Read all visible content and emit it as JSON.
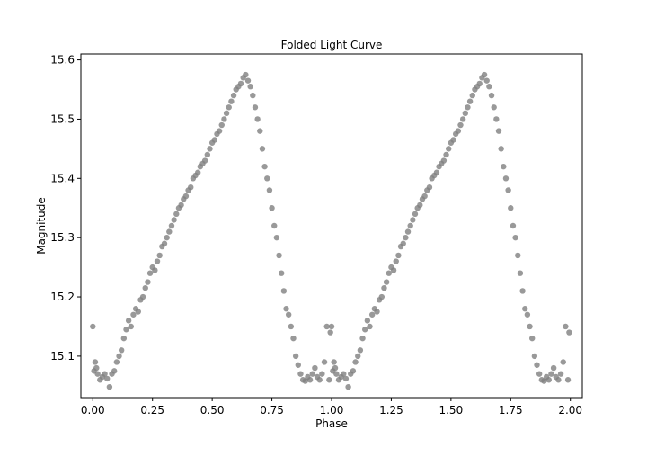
{
  "chart_data": {
    "type": "scatter",
    "title": "Folded Light Curve",
    "xlabel": "Phase",
    "ylabel": "Magnitude",
    "xlim": [
      -0.05,
      2.05
    ],
    "ylim": [
      15.03,
      15.61
    ],
    "x_ticks": [
      "0.00",
      "0.25",
      "0.50",
      "0.75",
      "1.00",
      "1.25",
      "1.50",
      "1.75",
      "2.00"
    ],
    "y_ticks": [
      "15.1",
      "15.2",
      "15.3",
      "15.4",
      "15.5",
      "15.6"
    ],
    "grid": false,
    "legend": "none",
    "marker_color": "#808080",
    "series": [
      {
        "x": [
          0.0,
          0.005,
          0.01,
          0.015,
          0.02,
          0.03,
          0.04,
          0.05,
          0.06,
          0.07,
          0.08,
          0.09,
          0.1,
          0.11,
          0.12,
          0.13,
          0.14,
          0.15,
          0.16,
          0.17,
          0.18,
          0.19,
          0.2,
          0.21,
          0.22,
          0.23,
          0.24,
          0.25,
          0.26,
          0.27,
          0.28,
          0.29,
          0.3,
          0.31,
          0.32,
          0.33,
          0.34,
          0.35,
          0.36,
          0.37,
          0.38,
          0.39,
          0.4,
          0.41,
          0.42,
          0.43,
          0.44,
          0.45,
          0.46,
          0.47,
          0.48,
          0.49,
          0.5,
          0.51,
          0.52,
          0.53,
          0.54,
          0.55,
          0.56,
          0.57,
          0.58,
          0.59,
          0.6,
          0.61,
          0.62,
          0.63,
          0.64,
          0.65,
          0.66,
          0.67,
          0.68,
          0.69,
          0.7,
          0.71,
          0.72,
          0.73,
          0.74,
          0.75,
          0.76,
          0.77,
          0.78,
          0.79,
          0.8,
          0.81,
          0.82,
          0.83,
          0.84,
          0.85,
          0.86,
          0.87,
          0.88,
          0.89,
          0.9,
          0.91,
          0.92,
          0.93,
          0.94,
          0.95,
          0.96,
          0.97,
          0.98,
          0.99,
          0.995
        ],
        "y": [
          15.15,
          15.075,
          15.09,
          15.08,
          15.07,
          15.06,
          15.065,
          15.07,
          15.062,
          15.048,
          15.07,
          15.075,
          15.09,
          15.1,
          15.11,
          15.13,
          15.145,
          15.16,
          15.15,
          15.17,
          15.18,
          15.175,
          15.195,
          15.2,
          15.215,
          15.225,
          15.24,
          15.25,
          15.245,
          15.26,
          15.27,
          15.285,
          15.29,
          15.3,
          15.31,
          15.32,
          15.33,
          15.34,
          15.35,
          15.355,
          15.365,
          15.37,
          15.38,
          15.385,
          15.4,
          15.405,
          15.41,
          15.42,
          15.425,
          15.43,
          15.44,
          15.45,
          15.46,
          15.465,
          15.475,
          15.48,
          15.49,
          15.5,
          15.51,
          15.52,
          15.53,
          15.54,
          15.55,
          15.555,
          15.56,
          15.57,
          15.575,
          15.565,
          15.555,
          15.54,
          15.52,
          15.5,
          15.48,
          15.45,
          15.42,
          15.4,
          15.38,
          15.35,
          15.32,
          15.3,
          15.27,
          15.24,
          15.21,
          15.18,
          15.17,
          15.15,
          15.13,
          15.1,
          15.085,
          15.07,
          15.06,
          15.058,
          15.065,
          15.06,
          15.07,
          15.08,
          15.065,
          15.06,
          15.07,
          15.09,
          15.15,
          15.06,
          15.14
        ]
      }
    ]
  }
}
